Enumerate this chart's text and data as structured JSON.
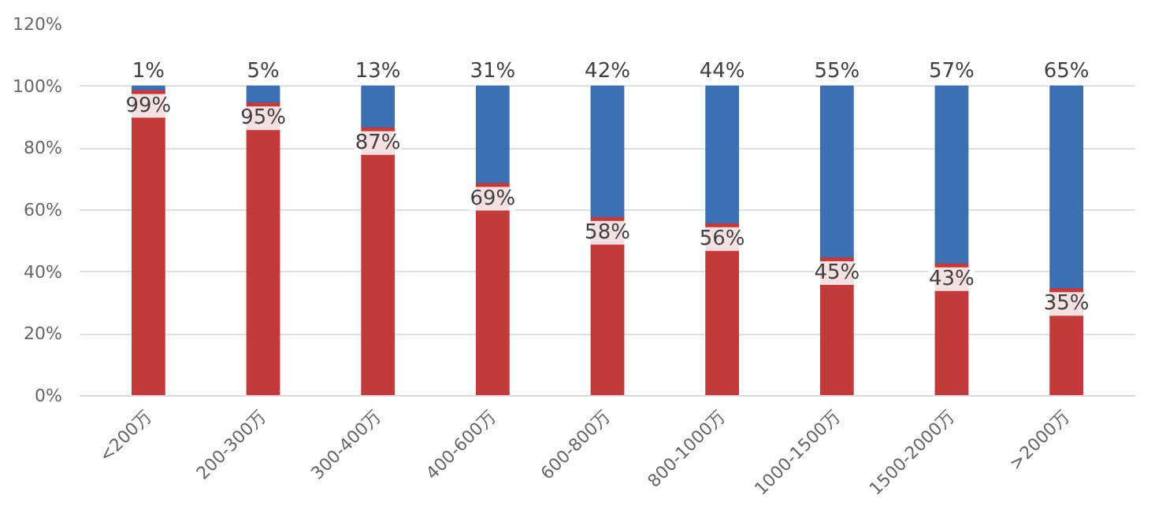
{
  "chart_data": {
    "type": "bar",
    "stacked": true,
    "categories": [
      "<200万",
      "200-300万",
      "300-400万",
      "400-600万",
      "600-800万",
      "800-1000万",
      "1000-1500万",
      "1500-2000万",
      ">2000万"
    ],
    "series": [
      {
        "color": "#c23b3c",
        "values": [
          99,
          95,
          87,
          69,
          58,
          56,
          45,
          43,
          35
        ],
        "value_labels": [
          "99%",
          "95%",
          "87%",
          "69%",
          "58%",
          "56%",
          "45%",
          "43%",
          "35%"
        ]
      },
      {
        "color": "#3d6fb3",
        "values": [
          1,
          5,
          13,
          31,
          42,
          44,
          55,
          57,
          65
        ],
        "value_labels": [
          "1%",
          "5%",
          "13%",
          "31%",
          "42%",
          "44%",
          "55%",
          "57%",
          "65%"
        ]
      }
    ],
    "ylim": [
      0,
      120
    ],
    "yticks": [
      {
        "value": 0,
        "label": "0%"
      },
      {
        "value": 20,
        "label": "20%"
      },
      {
        "value": 40,
        "label": "40%"
      },
      {
        "value": 60,
        "label": "60%"
      },
      {
        "value": 80,
        "label": "80%"
      },
      {
        "value": 100,
        "label": "100%"
      },
      {
        "value": 120,
        "label": "120%"
      }
    ],
    "grid": "y"
  }
}
